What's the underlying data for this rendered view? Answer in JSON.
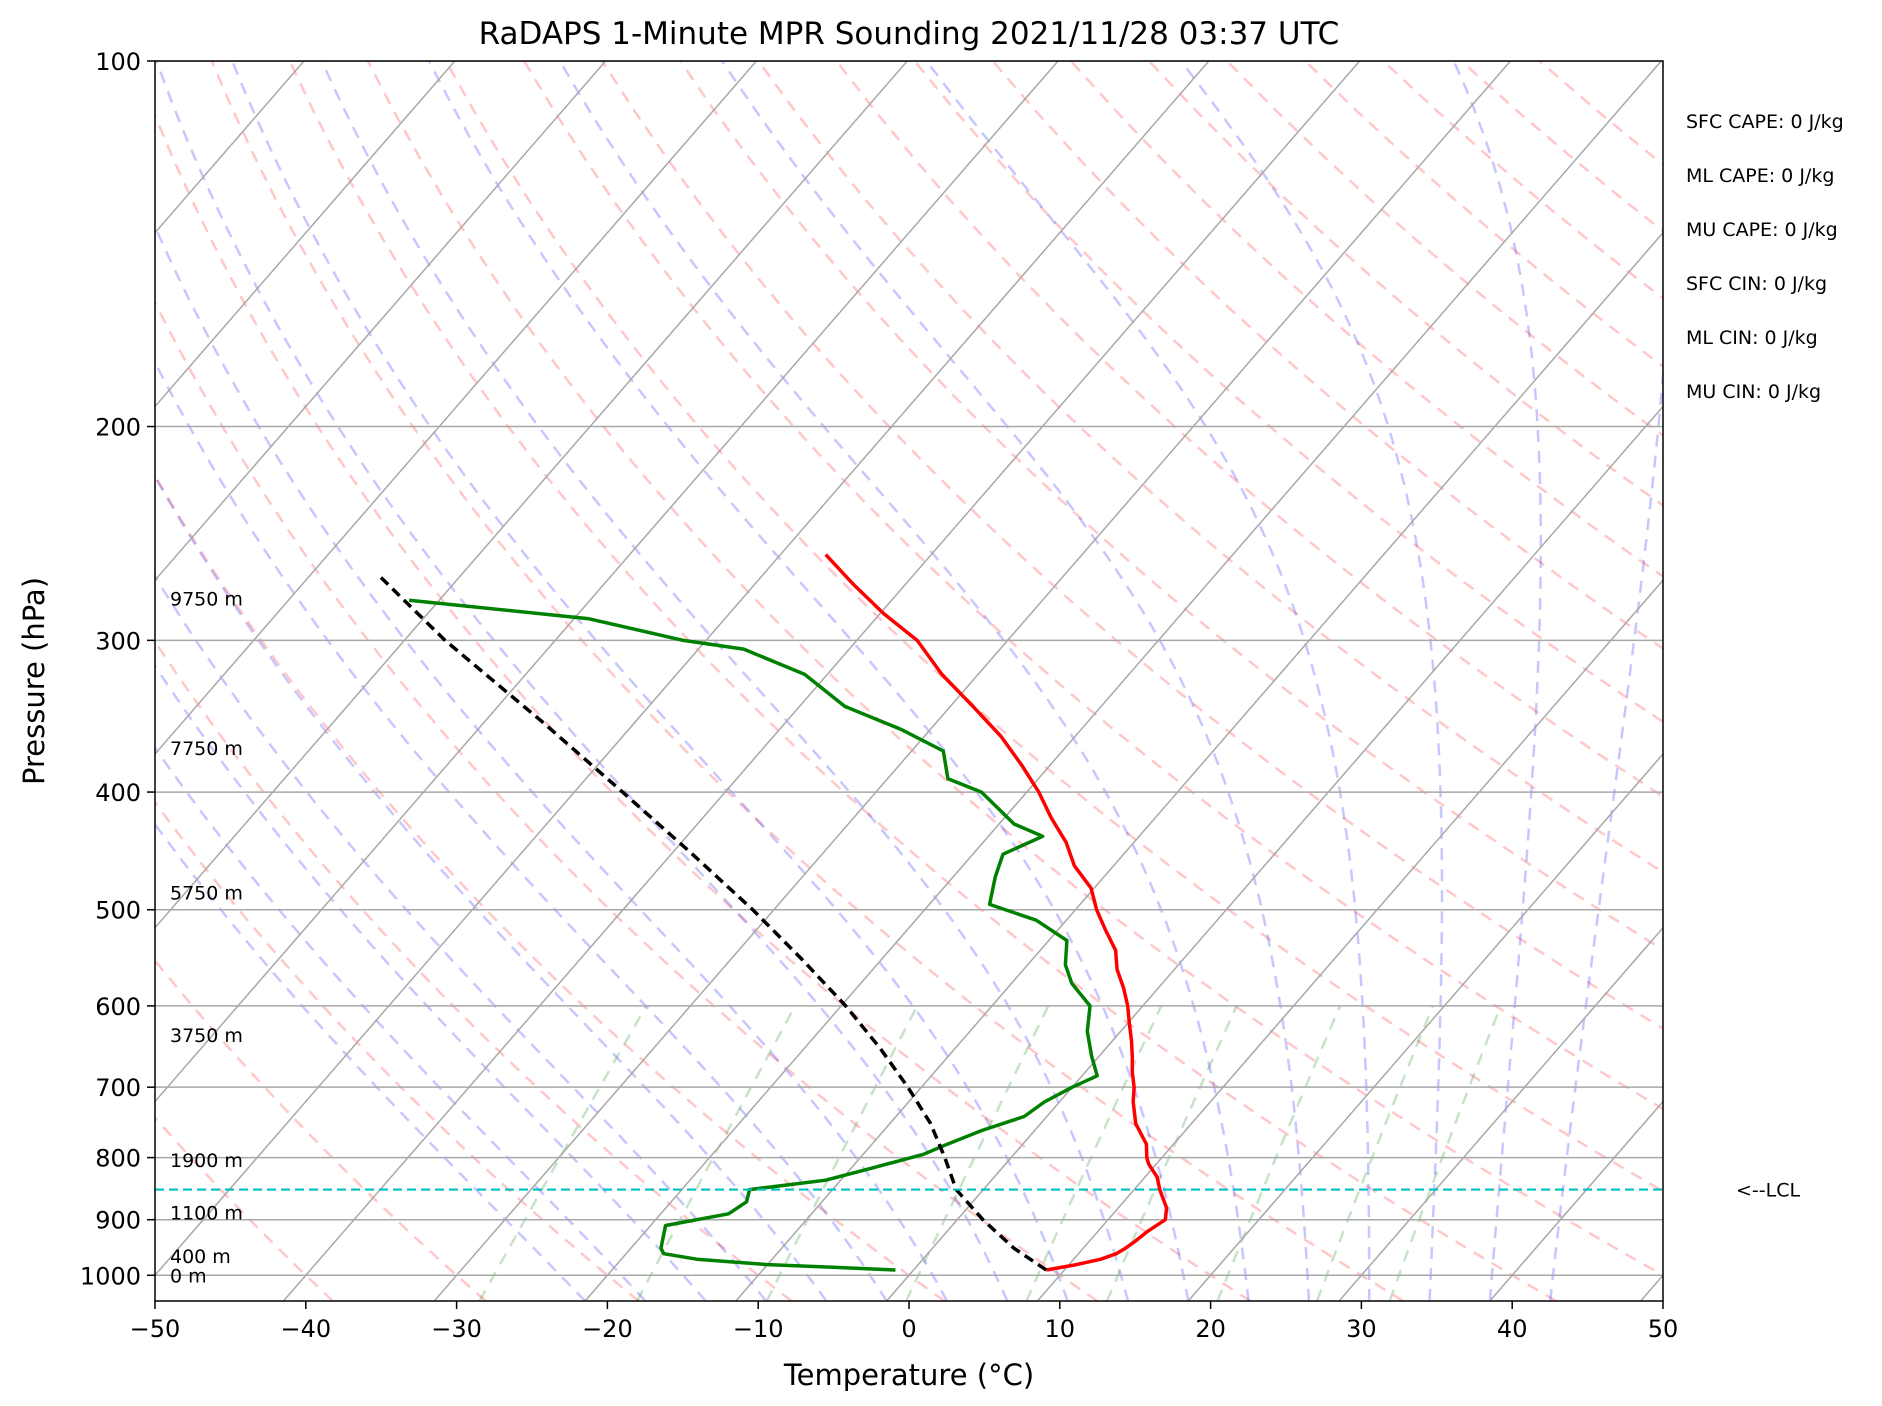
{
  "chart_data": {
    "type": "line",
    "title": "RaDAPS 1-Minute MPR Sounding 2021/11/28 03:37 UTC",
    "xlabel": "Temperature (°C)",
    "ylabel": "Pressure (hPa)",
    "xlim": [
      -50,
      50
    ],
    "ylim": [
      1050,
      100
    ],
    "y_scale": "log",
    "skew_t": true,
    "grid": true,
    "x_ticks": [
      "−50",
      "−40",
      "−30",
      "−20",
      "−10",
      "0",
      "10",
      "20",
      "30",
      "40",
      "50"
    ],
    "x_tick_values": [
      -50,
      -40,
      -30,
      -20,
      -10,
      0,
      10,
      20,
      30,
      40,
      50
    ],
    "y_ticks": [
      "100",
      "200",
      "300",
      "400",
      "500",
      "600",
      "700",
      "800",
      "900",
      "1000"
    ],
    "y_tick_values": [
      100,
      200,
      300,
      400,
      500,
      600,
      700,
      800,
      900,
      1000
    ],
    "height_labels": [
      {
        "text": "9750 m",
        "p": 277
      },
      {
        "text": "7750 m",
        "p": 368
      },
      {
        "text": "5750 m",
        "p": 484
      },
      {
        "text": "3750 m",
        "p": 634
      },
      {
        "text": "1900 m",
        "p": 804
      },
      {
        "text": "1100 m",
        "p": 888
      },
      {
        "text": "400 m",
        "p": 964
      },
      {
        "text": "0 m",
        "p": 1000
      }
    ],
    "series": [
      {
        "color": "#ff0000",
        "p": [
          990,
          980,
          970,
          960,
          950,
          940,
          920,
          900,
          880,
          860,
          850,
          830,
          810,
          800,
          780,
          750,
          720,
          700,
          680,
          660,
          640,
          620,
          600,
          580,
          560,
          540,
          520,
          500,
          480,
          460,
          440,
          420,
          400,
          380,
          360,
          340,
          320,
          300,
          285,
          270,
          255
        ],
        "values": [
          8.8,
          10.5,
          11.8,
          12.5,
          12.8,
          13.0,
          13.3,
          13.8,
          13.2,
          12.2,
          11.7,
          10.8,
          9.5,
          9.0,
          8.2,
          6.3,
          4.9,
          4.1,
          3.1,
          2.2,
          1.2,
          0.1,
          -1.0,
          -2.3,
          -3.8,
          -5.0,
          -6.8,
          -8.6,
          -10.2,
          -12.6,
          -14.5,
          -16.9,
          -19.2,
          -21.9,
          -24.9,
          -28.5,
          -32.4,
          -36.0,
          -39.8,
          -43.4,
          -47.0
        ]
      },
      {
        "color": "#008000",
        "p": [
          990,
          985,
          980,
          970,
          960,
          950,
          930,
          910,
          890,
          870,
          850,
          835,
          815,
          795,
          780,
          760,
          740,
          720,
          700,
          685,
          660,
          630,
          600,
          575,
          555,
          530,
          510,
          495,
          470,
          450,
          435,
          425,
          400,
          390,
          370,
          355,
          340,
          320,
          305,
          300,
          288,
          278
        ],
        "values": [
          -1.2,
          -5.5,
          -10.0,
          -15.0,
          -17.5,
          -18.0,
          -18.5,
          -19.0,
          -15.5,
          -15.0,
          -15.5,
          -11.0,
          -8.5,
          -6.0,
          -5.0,
          -3.5,
          -1.5,
          -1.0,
          0.0,
          1.0,
          -0.5,
          -2.2,
          -3.5,
          -6.0,
          -7.5,
          -8.8,
          -12.0,
          -16.0,
          -17.2,
          -18.0,
          -16.4,
          -19.0,
          -23.0,
          -26.0,
          -27.9,
          -32.0,
          -37.0,
          -41.5,
          -47.0,
          -51.5,
          -59.0,
          -72.0
        ]
      },
      {
        "color": "#000000",
        "dashed": true,
        "p": [
          990,
          950,
          900,
          850,
          800,
          750,
          700,
          650,
          600,
          550,
          500,
          450,
          400,
          350,
          300,
          265
        ],
        "values": [
          8.8,
          5.4,
          1.7,
          -1.8,
          -4.4,
          -7.3,
          -10.9,
          -15.0,
          -19.7,
          -25.2,
          -31.4,
          -38.6,
          -46.8,
          -56.2,
          -67.3,
          -75.5
        ]
      }
    ],
    "lcl": {
      "p": 850,
      "label": "<--LCL",
      "color": "#00bfbf"
    },
    "stats": [
      "SFC CAPE: 0 J/kg",
      "ML CAPE: 0 J/kg",
      "MU CAPE: 0 J/kg",
      "SFC CIN: 0 J/kg",
      "ML CIN: 0 J/kg",
      "MU CIN: 0 J/kg"
    ]
  }
}
